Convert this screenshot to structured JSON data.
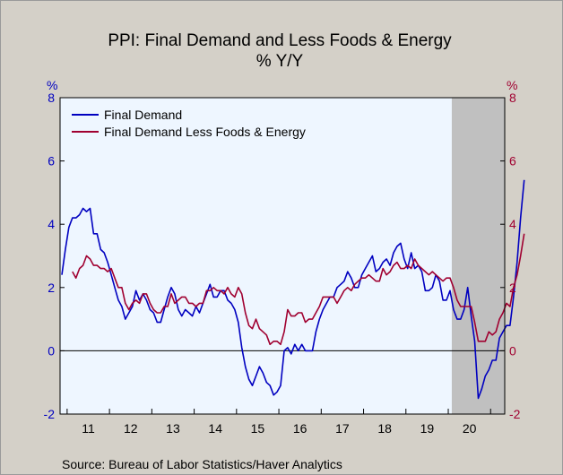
{
  "chart_data": {
    "type": "line",
    "title": "PPI: Final Demand and Less Foods & Energy",
    "subtitle": "% Y/Y",
    "ylabel_left": "%",
    "ylabel_right": "%",
    "ylim": [
      -2,
      8
    ],
    "yticks": [
      "8",
      "6",
      "4",
      "2",
      "0",
      "-2"
    ],
    "x_ticks": [
      "11",
      "12",
      "13",
      "14",
      "15",
      "16",
      "17",
      "18",
      "19",
      "20"
    ],
    "x_start": "2010-11",
    "x_end": "2021-04",
    "recession_shading": {
      "start": "2020-02",
      "end": "2021-04"
    },
    "grid": false,
    "zero_line": true,
    "legend_position": "top-left",
    "source": "Source:  Bureau of Labor Statistics/Haver Analytics",
    "colors": {
      "final_demand": "#0000c0",
      "less_foods_energy": "#a00030",
      "plot_bg": "#eef6ff",
      "recession": "#c0c0c0",
      "left_axis": "#0000c0",
      "right_axis": "#a00030"
    },
    "series": [
      {
        "name": "Final Demand",
        "values": [
          2.4,
          3.2,
          3.9,
          4.2,
          4.2,
          4.3,
          4.5,
          4.4,
          4.5,
          3.7,
          3.7,
          3.2,
          3.1,
          2.8,
          2.4,
          2.0,
          1.6,
          1.4,
          1.0,
          1.2,
          1.4,
          1.9,
          1.6,
          1.8,
          1.6,
          1.3,
          1.2,
          0.9,
          0.9,
          1.3,
          1.7,
          2.0,
          1.8,
          1.3,
          1.1,
          1.3,
          1.2,
          1.1,
          1.4,
          1.2,
          1.5,
          1.8,
          2.1,
          1.7,
          1.7,
          1.9,
          1.9,
          1.6,
          1.5,
          1.3,
          0.9,
          0.1,
          -0.5,
          -0.9,
          -1.1,
          -0.8,
          -0.5,
          -0.7,
          -1.0,
          -1.1,
          -1.4,
          -1.3,
          -1.1,
          0.0,
          0.1,
          -0.1,
          0.2,
          0.0,
          0.2,
          0.0,
          0.0,
          0.0,
          0.6,
          1.0,
          1.3,
          1.5,
          1.7,
          1.7,
          2.0,
          2.1,
          2.2,
          2.5,
          2.3,
          2.0,
          2.0,
          2.4,
          2.6,
          2.8,
          3.0,
          2.5,
          2.6,
          2.8,
          2.9,
          2.7,
          3.1,
          3.3,
          3.4,
          2.9,
          2.6,
          3.1,
          2.6,
          2.7,
          2.5,
          1.9,
          1.9,
          2.0,
          2.4,
          2.2,
          1.6,
          1.6,
          1.9,
          1.3,
          1.0,
          1.0,
          1.3,
          2.0,
          1.1,
          0.3,
          -1.5,
          -1.2,
          -0.8,
          -0.6,
          -0.3,
          -0.3,
          0.4,
          0.6,
          0.8,
          0.8,
          1.7,
          2.8,
          4.2,
          5.4
        ]
      },
      {
        "name": "Final Demand Less Foods & Energy",
        "values": [
          null,
          null,
          null,
          2.5,
          2.3,
          2.6,
          2.7,
          3.0,
          2.9,
          2.7,
          2.7,
          2.6,
          2.6,
          2.5,
          2.6,
          2.3,
          2.0,
          2.0,
          1.5,
          1.3,
          1.5,
          1.6,
          1.5,
          1.8,
          1.8,
          1.5,
          1.3,
          1.2,
          1.2,
          1.4,
          1.4,
          1.8,
          1.5,
          1.6,
          1.7,
          1.7,
          1.5,
          1.5,
          1.4,
          1.5,
          1.5,
          1.9,
          1.9,
          2.0,
          1.9,
          1.9,
          1.8,
          2.0,
          1.8,
          1.7,
          2.0,
          1.8,
          1.2,
          0.8,
          0.7,
          1.0,
          0.7,
          0.6,
          0.5,
          0.2,
          0.3,
          0.3,
          0.2,
          0.6,
          1.3,
          1.1,
          1.1,
          1.2,
          1.2,
          0.9,
          1.0,
          1.0,
          1.2,
          1.4,
          1.7,
          1.7,
          1.7,
          1.7,
          1.5,
          1.7,
          1.9,
          2.0,
          1.9,
          2.1,
          2.2,
          2.3,
          2.3,
          2.4,
          2.3,
          2.2,
          2.2,
          2.6,
          2.4,
          2.5,
          2.7,
          2.8,
          2.6,
          2.6,
          2.7,
          2.6,
          2.9,
          2.7,
          2.6,
          2.5,
          2.4,
          2.5,
          2.4,
          2.3,
          2.2,
          2.3,
          2.3,
          2.0,
          1.6,
          1.4,
          1.4,
          1.4,
          1.4,
          0.9,
          0.3,
          0.3,
          0.3,
          0.6,
          0.5,
          0.6,
          1.0,
          1.2,
          1.5,
          1.4,
          2.0,
          2.4,
          3.0,
          3.7
        ]
      }
    ]
  }
}
